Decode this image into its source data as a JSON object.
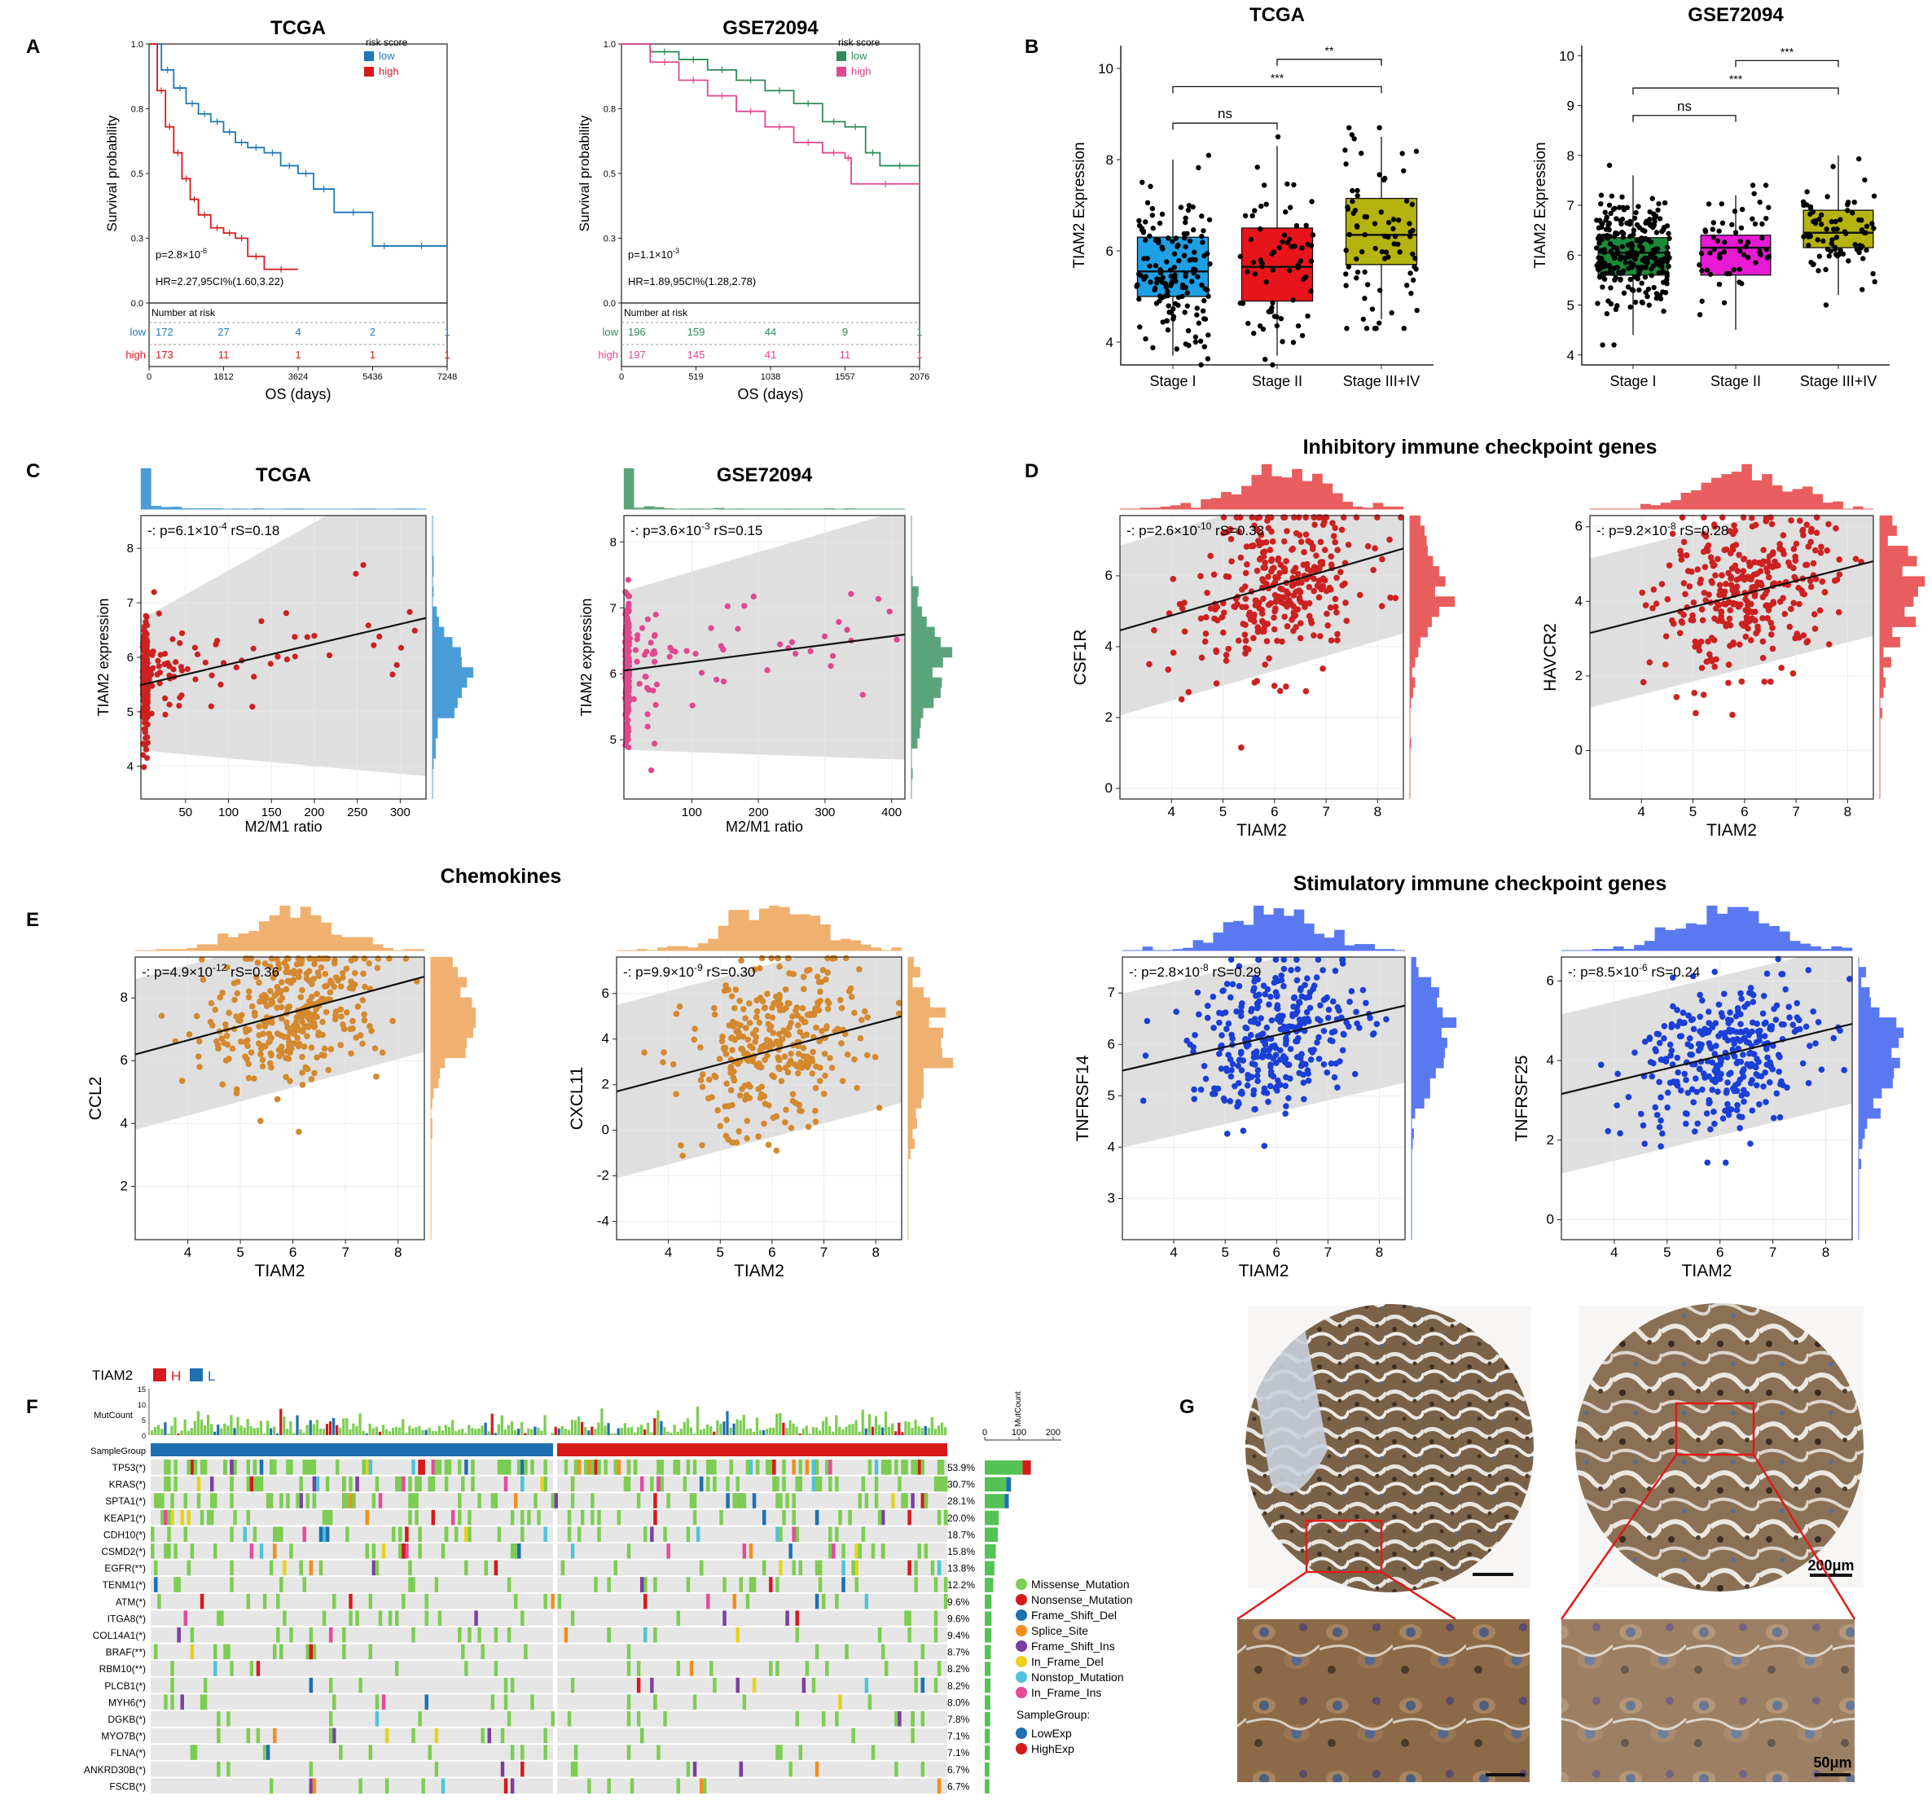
{
  "panel_letters": {
    "A": "A",
    "B": "B",
    "C": "C",
    "D": "D",
    "E": "E",
    "F": "F",
    "G": "G"
  },
  "section_titles": {
    "D": "Inhibitory immune checkpoint genes",
    "E_left": "Chemokines",
    "E_right": "Stimulatory immune checkpoint genes"
  },
  "colors": {
    "km_low_tcga": "#1f78b4",
    "km_high_tcga": "#d7191c",
    "km_low_gse": "#2e8b57",
    "km_high_gse": "#e0478f",
    "stage1_tcga": "#1ea0e6",
    "stage2_tcga": "#e8141b",
    "stage3": "#b5b30e",
    "stage1_gse": "#1b8a3a",
    "stage2_gse": "#e81ad4",
    "c_tcga": "#cc2121",
    "c_gse": "#e0478f",
    "c_tcga_hist": "#4a9cd6",
    "c_gse_hist": "#5ba37a",
    "d_red": "#cc2121",
    "d_hist": "#e85d5d",
    "e_orange": "#d4892e",
    "e_hist": "#f0b070",
    "e_blue": "#1a3fd6",
    "e_blue_hist": "#5a78ef",
    "onco_green": "#7ccd52",
    "onco_red": "#d7191c",
    "onco_blue": "#1f6fb2",
    "onco_orange": "#f28e1c",
    "onco_purple": "#7b3fa0",
    "onco_yellow": "#e8d21a",
    "onco_cyan": "#4fc3d9",
    "onco_pink": "#e64a9a",
    "onco_bg": "#e6e6e6",
    "mut_bar": "#55c255"
  },
  "chart_data": [
    {
      "id": "A1",
      "type": "line",
      "subtype": "kaplan-meier",
      "title": "TCGA",
      "xlabel": "OS (days)",
      "ylabel": "Survival probability",
      "xlim": [
        0,
        7248
      ],
      "ylim": [
        0,
        1
      ],
      "xticks": [
        "0",
        "1812",
        "3624",
        "5436",
        "7248"
      ],
      "yticks": [
        "0.0",
        "0.3",
        "0.5",
        "0.8",
        "1.0"
      ],
      "legend_title": "risk score",
      "p_text": "p=2.8×10",
      "p_exp": "-6",
      "hr_text": "HR=2.27,95CI%(1.60,3.22)",
      "risk_title": "Number at risk",
      "series": [
        {
          "name": "low",
          "color": "#1f78b4",
          "x": [
            0,
            300,
            600,
            900,
            1200,
            1500,
            1812,
            2100,
            2400,
            2800,
            3200,
            3624,
            4000,
            4500,
            5436,
            6000,
            7248
          ],
          "y": [
            1,
            0.9,
            0.83,
            0.77,
            0.73,
            0.7,
            0.66,
            0.62,
            0.6,
            0.58,
            0.53,
            0.5,
            0.44,
            0.35,
            0.22,
            0.22,
            0.22
          ],
          "risk": [
            "172",
            "27",
            "4",
            "2",
            "1"
          ]
        },
        {
          "name": "high",
          "color": "#d7191c",
          "x": [
            0,
            200,
            400,
            600,
            800,
            1000,
            1200,
            1500,
            1812,
            2100,
            2400,
            2800,
            3624
          ],
          "y": [
            1,
            0.82,
            0.68,
            0.58,
            0.48,
            0.4,
            0.34,
            0.29,
            0.27,
            0.25,
            0.18,
            0.13,
            0.13
          ],
          "risk": [
            "173",
            "11",
            "1",
            "1",
            "1"
          ]
        }
      ]
    },
    {
      "id": "A2",
      "type": "line",
      "subtype": "kaplan-meier",
      "title": "GSE72094",
      "xlabel": "OS (days)",
      "ylabel": "Survival probability",
      "xlim": [
        0,
        2076
      ],
      "ylim": [
        0,
        1
      ],
      "xticks": [
        "0",
        "519",
        "1038",
        "1557",
        "2076"
      ],
      "yticks": [
        "0.0",
        "0.3",
        "0.5",
        "0.8",
        "1.0"
      ],
      "legend_title": "risk score",
      "p_text": "p=1.1×10",
      "p_exp": "-3",
      "hr_text": "HR=1.89,95CI%(1.28,2.78)",
      "risk_title": "Number at risk",
      "series": [
        {
          "name": "low",
          "color": "#2e8b57",
          "x": [
            0,
            200,
            400,
            600,
            800,
            1000,
            1200,
            1400,
            1557,
            1700,
            1800,
            2076
          ],
          "y": [
            1,
            0.97,
            0.94,
            0.9,
            0.86,
            0.82,
            0.77,
            0.7,
            0.68,
            0.58,
            0.53,
            0.53
          ],
          "risk": [
            "196",
            "159",
            "44",
            "9",
            "1"
          ]
        },
        {
          "name": "high",
          "color": "#e0478f",
          "x": [
            0,
            200,
            400,
            600,
            800,
            1000,
            1200,
            1400,
            1557,
            1600,
            2076
          ],
          "y": [
            1,
            0.93,
            0.86,
            0.8,
            0.74,
            0.68,
            0.62,
            0.58,
            0.56,
            0.46,
            0.46
          ],
          "risk": [
            "197",
            "145",
            "41",
            "11",
            "1"
          ]
        }
      ]
    },
    {
      "id": "B1",
      "type": "box",
      "title": "TCGA",
      "ylabel": "TIAM2 Expression",
      "ylim": [
        3.5,
        10.5
      ],
      "yticks": [
        "4",
        "6",
        "8",
        "10"
      ],
      "categories": [
        "Stage I",
        "Stage II",
        "Stage III+IV"
      ],
      "boxes": [
        {
          "q1": 5.0,
          "med": 5.55,
          "q3": 6.3,
          "lo": 3.7,
          "hi": 8.0,
          "color": "#1ea0e6",
          "n": 150
        },
        {
          "q1": 4.9,
          "med": 5.65,
          "q3": 6.5,
          "lo": 3.7,
          "hi": 8.3,
          "color": "#e8141b",
          "n": 70
        },
        {
          "q1": 5.7,
          "med": 6.35,
          "q3": 7.15,
          "lo": 4.5,
          "hi": 8.5,
          "color": "#b5b30e",
          "n": 80
        }
      ],
      "brackets": [
        {
          "a": 0,
          "b": 1,
          "label": "ns",
          "y": 8.8
        },
        {
          "a": 0,
          "b": 2,
          "label": "***",
          "y": 9.6
        },
        {
          "a": 1,
          "b": 2,
          "label": "**",
          "y": 10.2
        }
      ]
    },
    {
      "id": "B2",
      "type": "box",
      "title": "GSE72094",
      "ylabel": "TIAM2 Expression",
      "ylim": [
        3.8,
        10.2
      ],
      "yticks": [
        "4",
        "5",
        "6",
        "7",
        "8",
        "9",
        "10"
      ],
      "categories": [
        "Stage I",
        "Stage II",
        "Stage III+IV"
      ],
      "boxes": [
        {
          "q1": 5.6,
          "med": 6.05,
          "q3": 6.35,
          "lo": 4.4,
          "hi": 7.6,
          "color": "#1b8a3a",
          "n": 250
        },
        {
          "q1": 5.6,
          "med": 6.15,
          "q3": 6.4,
          "lo": 4.5,
          "hi": 7.2,
          "color": "#e81ad4",
          "n": 60
        },
        {
          "q1": 6.15,
          "med": 6.45,
          "q3": 6.9,
          "lo": 5.2,
          "hi": 8.0,
          "color": "#b5b30e",
          "n": 80
        }
      ],
      "brackets": [
        {
          "a": 0,
          "b": 1,
          "label": "ns",
          "y": 8.8
        },
        {
          "a": 0,
          "b": 2,
          "label": "***",
          "y": 9.35
        },
        {
          "a": 1,
          "b": 2,
          "label": "***",
          "y": 9.9
        }
      ]
    },
    {
      "id": "C1",
      "type": "scatter",
      "title": "TCGA",
      "xlabel": "M2/M1 ratio",
      "ylabel": "TIAM2 expression",
      "xlim": [
        -2,
        330
      ],
      "ylim": [
        3.4,
        8.6
      ],
      "xticks": [
        "50",
        "100",
        "150",
        "200",
        "250",
        "300"
      ],
      "xtickvals": [
        50,
        100,
        150,
        200,
        250,
        300
      ],
      "yticks": [
        "4",
        "5",
        "6",
        "7",
        "8"
      ],
      "fit": [
        5.5,
        0.0037
      ],
      "band": [
        1.2,
        2.9
      ],
      "annot_pre": "-: p=6.1×10",
      "annot_exp": "-4",
      "annot_post": " rS=0.18",
      "n": 260,
      "font": "serif"
    },
    {
      "id": "C2",
      "type": "scatter",
      "title": "GSE72094",
      "xlabel": "M2/M1 ratio",
      "ylabel": "TIAM2 expression",
      "xlim": [
        -2,
        420
      ],
      "ylim": [
        4.1,
        8.4
      ],
      "xticks": [
        "100",
        "200",
        "300",
        "400"
      ],
      "xtickvals": [
        100,
        200,
        300,
        400
      ],
      "yticks": [
        "5",
        "6",
        "7",
        "8"
      ],
      "fit": [
        6.05,
        0.0013
      ],
      "band": [
        1.2,
        1.9
      ],
      "annot_pre": "-: p=3.6×10",
      "annot_exp": "-3",
      "annot_post": " rS=0.15",
      "n": 260,
      "font": "serif"
    },
    {
      "id": "D1",
      "type": "scatter",
      "xlabel": "TIAM2",
      "ylabel": "CSF1R",
      "xlim": [
        3,
        8.5
      ],
      "ylim": [
        -0.3,
        7.7
      ],
      "xticks": [
        "4",
        "5",
        "6",
        "7",
        "8"
      ],
      "xtickvals": [
        4,
        5,
        6,
        7,
        8
      ],
      "yticks": [
        "0",
        "2",
        "4",
        "6"
      ],
      "fit": [
        3.2,
        0.42
      ],
      "band": [
        2.4,
        2.4
      ],
      "annot_pre": "-: p=2.6×10",
      "annot_exp": "-10",
      "annot_post": " rS=0.33",
      "n": 330
    },
    {
      "id": "D2",
      "type": "scatter",
      "xlabel": "TIAM2",
      "ylabel": "HAVCR2",
      "xlim": [
        3,
        8.5
      ],
      "ylim": [
        -1.3,
        6.3
      ],
      "xticks": [
        "4",
        "5",
        "6",
        "7",
        "8"
      ],
      "xtickvals": [
        4,
        5,
        6,
        7,
        8
      ],
      "yticks": [
        "0",
        "2",
        "4",
        "6"
      ],
      "fit": [
        2.1,
        0.35
      ],
      "band": [
        2.0,
        2.0
      ],
      "annot_pre": "-: p=9.2×10",
      "annot_exp": "-8",
      "annot_post": " rS=0.28",
      "n": 330
    },
    {
      "id": "E1",
      "type": "scatter",
      "xlabel": "TIAM2",
      "ylabel": "CCL2",
      "xlim": [
        3,
        8.5
      ],
      "ylim": [
        0.3,
        9.3
      ],
      "xticks": [
        "4",
        "5",
        "6",
        "7",
        "8"
      ],
      "xtickvals": [
        4,
        5,
        6,
        7,
        8
      ],
      "yticks": [
        "2",
        "4",
        "6",
        "8"
      ],
      "fit": [
        4.85,
        0.45
      ],
      "band": [
        2.4,
        2.4
      ],
      "annot_pre": "-: p=4.9×10",
      "annot_exp": "-12",
      "annot_post": " rS=0.36",
      "n": 330
    },
    {
      "id": "E2",
      "type": "scatter",
      "xlabel": "TIAM2",
      "ylabel": "CXCL11",
      "xlim": [
        3,
        8.5
      ],
      "ylim": [
        -4.8,
        7.6
      ],
      "xticks": [
        "4",
        "5",
        "6",
        "7",
        "8"
      ],
      "xtickvals": [
        4,
        5,
        6,
        7,
        8
      ],
      "yticks": [
        "-4",
        "-2",
        "0",
        "2",
        "4",
        "6"
      ],
      "fit": [
        -0.1,
        0.6
      ],
      "band": [
        3.8,
        3.8
      ],
      "annot_pre": "-: p=9.9×10",
      "annot_exp": "-9",
      "annot_post": " rS=0.30",
      "n": 330
    },
    {
      "id": "E3",
      "type": "scatter",
      "xlabel": "TIAM2",
      "ylabel": "TNFRSF14",
      "xlim": [
        3,
        8.5
      ],
      "ylim": [
        2.2,
        7.7
      ],
      "xticks": [
        "4",
        "5",
        "6",
        "7",
        "8"
      ],
      "xtickvals": [
        4,
        5,
        6,
        7,
        8
      ],
      "yticks": [
        "3",
        "4",
        "5",
        "6",
        "7"
      ],
      "fit": [
        4.8,
        0.23
      ],
      "band": [
        1.5,
        1.5
      ],
      "annot_pre": "-: p=2.8×10",
      "annot_exp": "-8",
      "annot_post": " rS=0.29",
      "n": 330
    },
    {
      "id": "E4",
      "type": "scatter",
      "xlabel": "TIAM2",
      "ylabel": "TNFRSF25",
      "xlim": [
        3,
        8.5
      ],
      "ylim": [
        -0.5,
        6.6
      ],
      "xticks": [
        "4",
        "5",
        "6",
        "7",
        "8"
      ],
      "xtickvals": [
        4,
        5,
        6,
        7,
        8
      ],
      "yticks": [
        "0",
        "2",
        "4",
        "6"
      ],
      "fit": [
        2.2,
        0.32
      ],
      "band": [
        2.0,
        2.0
      ],
      "annot_pre": "-: p=8.5×10",
      "annot_exp": "-6",
      "annot_post": " rS=0.24",
      "n": 330
    },
    {
      "id": "F",
      "type": "oncoplot",
      "group_label": "TIAM2",
      "group_H": "H",
      "group_L": "L",
      "mutcount_label": "MutCount",
      "samplegroup_label": "SampleGroup",
      "yticks_mut": [
        "15",
        "10",
        "5",
        "0"
      ],
      "mutcount_axis_ticks": [
        "0",
        "100",
        "200"
      ],
      "mutcount_axis_label": "MutCount",
      "genes": [
        "TP53(*)",
        "KRAS(*)",
        "SPTA1(*)",
        "KEAP1(*)",
        "CDH10(*)",
        "CSMD2(*)",
        "EGFR(**)",
        "TENM1(*)",
        "ATM(*)",
        "ITGA8(*)",
        "COL14A1(*)",
        "BRAF(**)",
        "RBM10(**)",
        "PLCB1(*)",
        "MYH6(*)",
        "DGKB(*)",
        "MYO7B(*)",
        "FLNA(*)",
        "ANKRD30B(*)",
        "FSCB(*)"
      ],
      "percents": [
        "53.9%",
        "30.7%",
        "28.1%",
        "20.0%",
        "18.7%",
        "15.8%",
        "13.8%",
        "12.2%",
        "9.6%",
        "9.6%",
        "9.4%",
        "8.7%",
        "8.2%",
        "8.2%",
        "8.0%",
        "7.8%",
        "7.1%",
        "7.1%",
        "6.7%",
        "6.7%"
      ],
      "freq": [
        0.539,
        0.307,
        0.281,
        0.2,
        0.187,
        0.158,
        0.138,
        0.122,
        0.096,
        0.096,
        0.094,
        0.087,
        0.082,
        0.082,
        0.08,
        0.078,
        0.071,
        0.071,
        0.067,
        0.067
      ],
      "legend": [
        "Missense_Mutation",
        "Nonsense_Mutation",
        "Frame_Shift_Del",
        "Splice_Site",
        "Frame_Shift_Ins",
        "In_Frame_Del",
        "Nonstop_Mutation",
        "In_Frame_Ins"
      ],
      "legend_sg_title": "SampleGroup:",
      "legend_sg": [
        "LowExp",
        "HighExp"
      ]
    }
  ],
  "panel_g": {
    "scale_top": "200μm",
    "scale_bottom": "50μm"
  }
}
